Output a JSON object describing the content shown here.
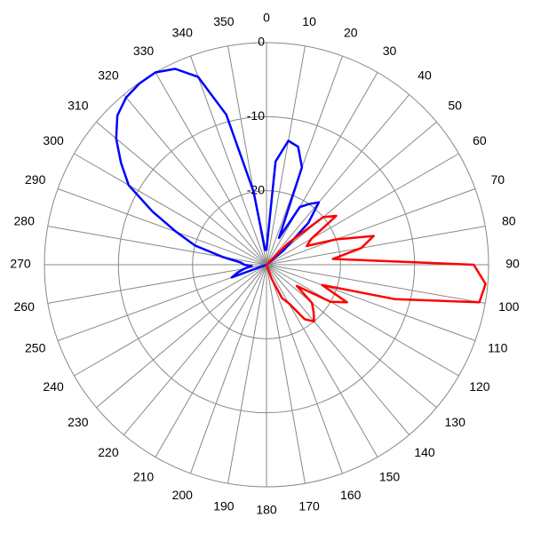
{
  "chart_data": {
    "type": "polar",
    "x": [
      0,
      5,
      10,
      15,
      20,
      25,
      30,
      35,
      40,
      45,
      50,
      55,
      60,
      65,
      70,
      75,
      80,
      85,
      90,
      95,
      100,
      105,
      110,
      115,
      120,
      125,
      130,
      135,
      140,
      145,
      150,
      155,
      160,
      165,
      170,
      175,
      180,
      185,
      190,
      195,
      200,
      205,
      210,
      215,
      220,
      225,
      230,
      235,
      240,
      245,
      250,
      255,
      260,
      265,
      270,
      275,
      280,
      285,
      290,
      295,
      300,
      305,
      310,
      315,
      320,
      325,
      330,
      335,
      340,
      345,
      350,
      355
    ],
    "series": [
      {
        "color": "#0000ff",
        "values": [
          -28,
          -16,
          -13,
          -13.5,
          -16,
          -26,
          -21,
          -20,
          -19,
          -22,
          -27,
          -30,
          -30,
          -30,
          -30,
          -30,
          -30,
          -30,
          -30,
          -30,
          -30,
          -30,
          -30,
          -30,
          -30,
          -30,
          -30,
          -30,
          -30,
          -30,
          -30,
          -30,
          -30,
          -30,
          -30,
          -30,
          -30,
          -30,
          -30,
          -30,
          -30,
          -30,
          -30,
          -30,
          -30,
          -30,
          -30,
          -30,
          -30,
          -30,
          -25,
          -26,
          -27,
          -28,
          -27,
          -26.5,
          -24,
          -20,
          -17,
          -13,
          -8.5,
          -6,
          -3.5,
          -1.5,
          -0.5,
          -0.1,
          0,
          -0.8,
          -3,
          -9,
          -20,
          -28
        ]
      },
      {
        "color": "#ff0000",
        "values": [
          -30,
          -30,
          -30,
          -30,
          -30,
          -30,
          -30,
          -30,
          -30,
          -26,
          -20,
          -18.5,
          -23,
          -24,
          -20,
          -15,
          -17,
          -21,
          -2,
          -0.3,
          -0.8,
          -12,
          -22,
          -18,
          -20,
          -25,
          -22,
          -21,
          -20,
          -21,
          -24,
          -25,
          -28,
          -30,
          -30,
          -30,
          -30,
          -30,
          -30,
          -30,
          -30,
          -30,
          -30,
          -30,
          -30,
          -30,
          -30,
          -30,
          -30,
          -30,
          -30,
          -30,
          -30,
          -30,
          -30,
          -30,
          -30,
          -30,
          -30,
          -30,
          -30,
          -30,
          -30,
          -30,
          -30,
          -30,
          -30,
          -30,
          -30,
          -30,
          -30,
          -30
        ]
      }
    ],
    "xticks": [
      0,
      10,
      20,
      30,
      40,
      50,
      60,
      70,
      80,
      90,
      100,
      110,
      120,
      130,
      140,
      150,
      160,
      170,
      180,
      190,
      200,
      210,
      220,
      230,
      240,
      250,
      260,
      270,
      280,
      290,
      300,
      310,
      320,
      330,
      340,
      350
    ],
    "ylim": [
      -30,
      0
    ],
    "yticks": [
      0,
      -10,
      -20
    ],
    "grid": true
  }
}
